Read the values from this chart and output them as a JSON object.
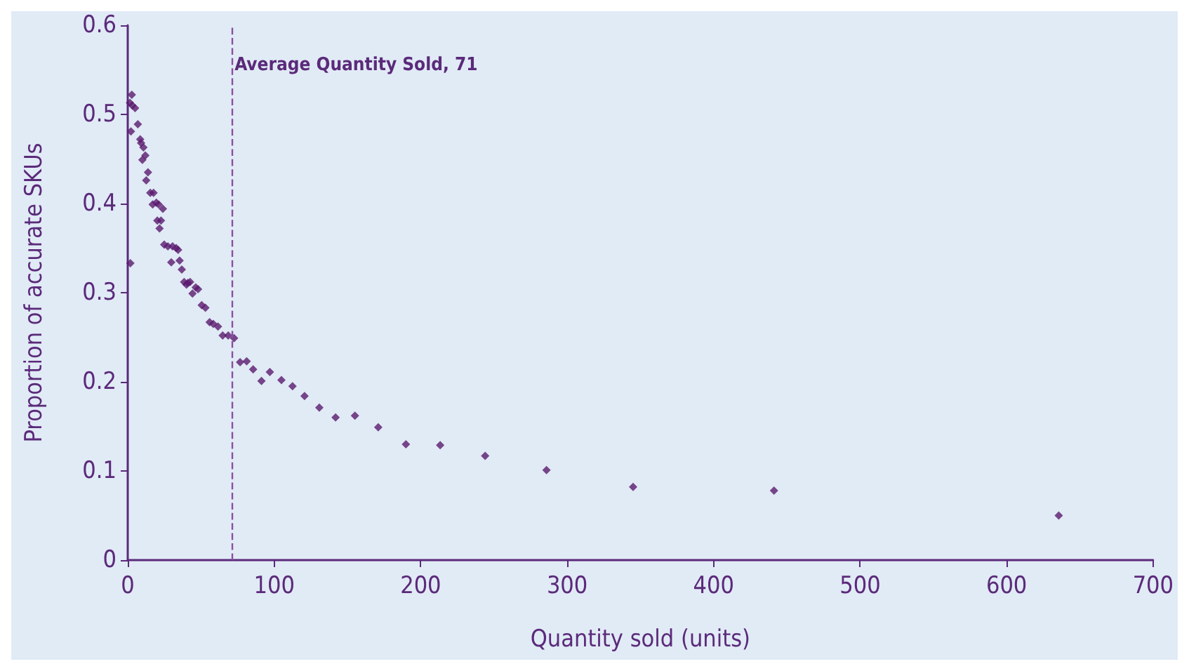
{
  "chart_data": {
    "type": "scatter",
    "xlabel": "Quantity sold (units)",
    "ylabel": "Proportion of accurate SKUs",
    "marker": "diamond",
    "grid": false,
    "xlim": [
      0,
      700
    ],
    "xticks": [
      0,
      100,
      200,
      300,
      400,
      500,
      600,
      700
    ],
    "ylim": [
      0,
      0.6
    ],
    "yticks": [
      0,
      0.1,
      0.2,
      0.3,
      0.4,
      0.5,
      0.6
    ],
    "series": [
      {
        "color": "#5a1a6e",
        "x": [
          1.8,
          2.2,
          1.5,
          2.8,
          3.1,
          5,
          6.9,
          8.5,
          9.1,
          10.7,
          12,
          10,
          13.8,
          12.6,
          15.4,
          17.6,
          17,
          19.5,
          21.1,
          24,
          20.2,
          22.7,
          21.7,
          24.9,
          27.4,
          30.6,
          33.1,
          34.4,
          29.7,
          35.4,
          36.9,
          38.5,
          40.1,
          41.1,
          42.6,
          44.2,
          46.4,
          48,
          50.5,
          53,
          55.9,
          58.4,
          61.6,
          64.8,
          68.6,
          72.6,
          76.7,
          81.2,
          85.6,
          91.3,
          97,
          104.9,
          112.5,
          120.7,
          130.8,
          141.9,
          155.1,
          171,
          189.9,
          213.3,
          244,
          285.9,
          345,
          441.2,
          635.6
        ],
        "values": [
          0.333,
          0.481,
          0.513,
          0.522,
          0.51,
          0.507,
          0.489,
          0.472,
          0.468,
          0.463,
          0.454,
          0.449,
          0.435,
          0.426,
          0.412,
          0.412,
          0.399,
          0.401,
          0.399,
          0.394,
          0.381,
          0.381,
          0.372,
          0.354,
          0.352,
          0.352,
          0.35,
          0.348,
          0.334,
          0.336,
          0.326,
          0.312,
          0.309,
          0.311,
          0.312,
          0.299,
          0.306,
          0.304,
          0.286,
          0.283,
          0.267,
          0.265,
          0.262,
          0.252,
          0.252,
          0.249,
          0.222,
          0.223,
          0.214,
          0.201,
          0.211,
          0.202,
          0.195,
          0.184,
          0.171,
          0.16,
          0.162,
          0.149,
          0.13,
          0.129,
          0.117,
          0.101,
          0.082,
          0.078,
          0.05
        ]
      }
    ],
    "ref_lines": [
      {
        "axis": "x",
        "value": 71,
        "label": "Average Quantity Sold, 71",
        "color": "#8a4fa0",
        "line_style": "dashed"
      }
    ]
  }
}
